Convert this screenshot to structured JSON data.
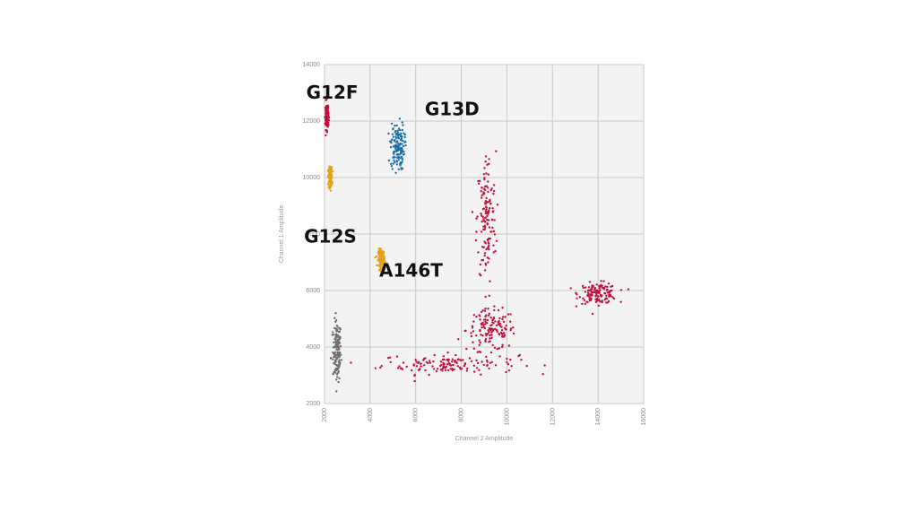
{
  "chart_data": {
    "type": "scatter",
    "title": "",
    "xlabel": "Channel 2 Amplitude",
    "ylabel": "Channel 1 Amplitude",
    "xlim": [
      2000,
      16000
    ],
    "ylim": [
      2000,
      14000
    ],
    "x_ticks": [
      2000,
      4000,
      6000,
      8000,
      10000,
      12000,
      14000,
      16000
    ],
    "y_ticks": [
      2000,
      4000,
      6000,
      8000,
      10000,
      12000,
      14000
    ],
    "x_tick_labels": [
      "2000",
      "4000",
      "6000",
      "8000",
      "10000",
      "12000",
      "14000",
      "16000"
    ],
    "y_tick_labels": [
      "2000",
      "4000",
      "6000",
      "8000",
      "10000",
      "12000",
      "14000"
    ],
    "grid": true,
    "plot_background": "#f3f3f3",
    "clusters": [
      {
        "color": "#6e6e6e",
        "center": [
          2550,
          3850
        ],
        "spread": [
          150,
          900
        ]
      },
      {
        "color": "#c0113e",
        "center": [
          7500,
          3400
        ],
        "spread": [
          2500,
          300
        ]
      },
      {
        "color": "#c0113e",
        "center": [
          9300,
          4600
        ],
        "spread": [
          900,
          600
        ]
      },
      {
        "color": "#c0113e",
        "center": [
          14000,
          5900
        ],
        "spread": [
          700,
          300
        ]
      },
      {
        "color": "#c0113e",
        "center": [
          9100,
          8500
        ],
        "spread": [
          350,
          2000
        ]
      },
      {
        "color": "#1f6fa8",
        "center": [
          5200,
          11100
        ],
        "spread": [
          250,
          700
        ]
      },
      {
        "color": "#e3a21c",
        "center": [
          2250,
          10000
        ],
        "spread": [
          70,
          300
        ]
      },
      {
        "color": "#e3a21c",
        "center": [
          4500,
          7150
        ],
        "spread": [
          120,
          250
        ]
      },
      {
        "color": "#c0113e",
        "center": [
          2100,
          12200
        ],
        "spread": [
          60,
          400
        ]
      }
    ],
    "annotations": [
      {
        "text": "G12F",
        "x": 1200,
        "y": 12800
      },
      {
        "text": "G13D",
        "x": 6400,
        "y": 12200
      },
      {
        "text": "G12S",
        "x": 1100,
        "y": 7700
      },
      {
        "text": "A146T",
        "x": 4400,
        "y": 6500
      }
    ]
  }
}
